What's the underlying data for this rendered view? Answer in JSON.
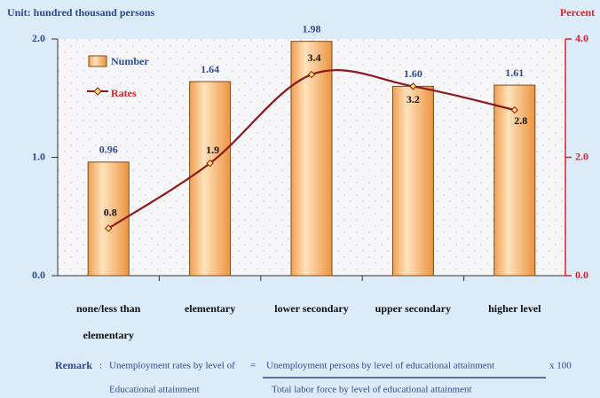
{
  "chart_data": {
    "type": "bar_line",
    "y_axis_label": "Unit: hundred thousand persons",
    "y2_axis_label": "Percent",
    "categories": [
      "none/less than elementary",
      "elementary",
      "lower secondary",
      "upper secondary",
      "higher level"
    ],
    "series": [
      {
        "name": "Number",
        "type": "bar",
        "color": "#f4a460",
        "values": [
          0.96,
          1.64,
          1.98,
          1.6,
          1.61
        ],
        "value_labels": [
          "0.96",
          "1.64",
          "1.98",
          "1.60",
          "1.61"
        ]
      },
      {
        "name": "Rates",
        "type": "line",
        "axis": "y2",
        "color": "#8b1a1a",
        "values": [
          0.8,
          1.9,
          3.4,
          3.2,
          2.8
        ]
      }
    ],
    "ylim": [
      0,
      2
    ],
    "yticks": [
      {
        "value": 0,
        "label": "0.0"
      },
      {
        "value": 1,
        "label": "1.0"
      },
      {
        "value": 2,
        "label": "2.0"
      }
    ],
    "y2lim": [
      0,
      4
    ],
    "y2ticks": [
      {
        "value": 0,
        "label": "0.0"
      },
      {
        "value": 2,
        "label": "2.0"
      },
      {
        "value": 4,
        "label": "4.0"
      }
    ],
    "remark": {
      "label": "Remark",
      "separator": ":",
      "lhs_line1": "Unemployment rates by level of",
      "lhs_line2": "Educational attainment",
      "equals": "=",
      "numerator": "Unemployment persons by level of educational attainment",
      "denominator": "Total labor force by level of educational attainment",
      "multiplier": "x  100"
    }
  }
}
